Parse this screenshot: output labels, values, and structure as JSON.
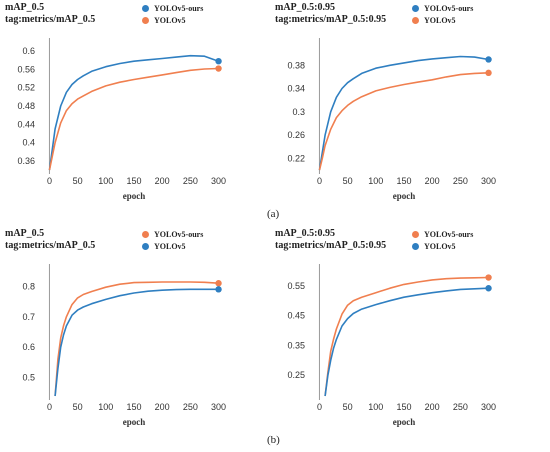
{
  "colors": {
    "blue": "#2f7fc1",
    "orange": "#f07f4f"
  },
  "captions": {
    "a": "(a)",
    "b": "(b)"
  },
  "chart_data": [
    {
      "type": "line",
      "title": "mAP_0.5",
      "subtitle": "tag:metrics/mAP_0.5",
      "xlabel": "epoch",
      "xlim": [
        -15,
        315
      ],
      "ylim": [
        0.34,
        0.62
      ],
      "xticks": [
        0,
        50,
        100,
        150,
        200,
        250,
        300
      ],
      "yticks": [
        0.36,
        0.4,
        0.44,
        0.48,
        0.52,
        0.56,
        0.6
      ],
      "ytick_labels": [
        "0.36",
        "0.4",
        "0.44",
        "0.48",
        "0.52",
        "0.56",
        "0.6"
      ],
      "grid": false,
      "legend": "top-right",
      "series": [
        {
          "name": "YOLOv5-ours",
          "color": "blue",
          "x": [
            0,
            5,
            10,
            20,
            30,
            40,
            50,
            60,
            75,
            100,
            125,
            150,
            175,
            200,
            225,
            250,
            275,
            300
          ],
          "y": [
            0.34,
            0.385,
            0.43,
            0.48,
            0.51,
            0.527,
            0.538,
            0.546,
            0.556,
            0.566,
            0.573,
            0.578,
            0.581,
            0.584,
            0.587,
            0.59,
            0.589,
            0.578
          ]
        },
        {
          "name": "YOLOv5",
          "color": "orange",
          "x": [
            0,
            5,
            10,
            20,
            30,
            40,
            50,
            60,
            75,
            100,
            125,
            150,
            175,
            200,
            225,
            250,
            275,
            300
          ],
          "y": [
            0.34,
            0.37,
            0.4,
            0.443,
            0.47,
            0.485,
            0.495,
            0.502,
            0.512,
            0.524,
            0.532,
            0.538,
            0.543,
            0.548,
            0.553,
            0.558,
            0.561,
            0.562
          ]
        }
      ]
    },
    {
      "type": "line",
      "title": "mAP_0.5:0.95",
      "subtitle": "tag:metrics/mAP_0.5:0.95",
      "xlabel": "epoch",
      "xlim": [
        -15,
        315
      ],
      "ylim": [
        0.2,
        0.42
      ],
      "xticks": [
        0,
        50,
        100,
        150,
        200,
        250,
        300
      ],
      "yticks": [
        0.22,
        0.26,
        0.3,
        0.34,
        0.38
      ],
      "ytick_labels": [
        "0.22",
        "0.26",
        "0.3",
        "0.34",
        "0.38"
      ],
      "grid": false,
      "legend": "top-right",
      "series": [
        {
          "name": "YOLOv5-ours",
          "color": "blue",
          "x": [
            0,
            5,
            10,
            20,
            30,
            40,
            50,
            60,
            75,
            100,
            125,
            150,
            175,
            200,
            225,
            250,
            275,
            300
          ],
          "y": [
            0.2,
            0.23,
            0.26,
            0.3,
            0.325,
            0.34,
            0.35,
            0.357,
            0.366,
            0.375,
            0.38,
            0.384,
            0.388,
            0.391,
            0.393,
            0.395,
            0.394,
            0.39
          ]
        },
        {
          "name": "YOLOv5",
          "color": "orange",
          "x": [
            0,
            5,
            10,
            20,
            30,
            40,
            50,
            60,
            75,
            100,
            125,
            150,
            175,
            200,
            225,
            250,
            275,
            300
          ],
          "y": [
            0.2,
            0.22,
            0.242,
            0.27,
            0.29,
            0.302,
            0.311,
            0.318,
            0.326,
            0.336,
            0.342,
            0.347,
            0.351,
            0.355,
            0.36,
            0.364,
            0.366,
            0.367
          ]
        }
      ]
    },
    {
      "type": "line",
      "title": "mAP_0.5",
      "subtitle": "tag:metrics/mAP_0.5",
      "xlabel": "epoch",
      "xlim": [
        -15,
        315
      ],
      "ylim": [
        0.44,
        0.86
      ],
      "xticks": [
        0,
        50,
        100,
        150,
        200,
        250,
        300
      ],
      "yticks": [
        0.5,
        0.6,
        0.7,
        0.8
      ],
      "ytick_labels": [
        "0.5",
        "0.6",
        "0.7",
        "0.8"
      ],
      "grid": false,
      "legend": "top-right",
      "series": [
        {
          "name": "YOLOv5-ours",
          "color": "orange",
          "x": [
            10,
            15,
            20,
            25,
            30,
            40,
            50,
            60,
            75,
            100,
            125,
            150,
            175,
            200,
            225,
            250,
            275,
            300
          ],
          "y": [
            0.44,
            0.56,
            0.63,
            0.67,
            0.7,
            0.74,
            0.762,
            0.773,
            0.783,
            0.797,
            0.807,
            0.812,
            0.813,
            0.814,
            0.814,
            0.814,
            0.813,
            0.81
          ]
        },
        {
          "name": "YOLOv5",
          "color": "blue",
          "x": [
            10,
            15,
            20,
            25,
            30,
            40,
            50,
            60,
            75,
            100,
            125,
            150,
            175,
            200,
            225,
            250,
            275,
            300
          ],
          "y": [
            0.44,
            0.53,
            0.6,
            0.64,
            0.67,
            0.705,
            0.722,
            0.732,
            0.743,
            0.757,
            0.769,
            0.778,
            0.784,
            0.787,
            0.789,
            0.79,
            0.79,
            0.79
          ]
        }
      ]
    },
    {
      "type": "line",
      "title": "mAP_0.5:0.95",
      "subtitle": "tag:metrics/mAP_0.5:0.95",
      "xlabel": "epoch",
      "xlim": [
        -15,
        315
      ],
      "ylim": [
        0.18,
        0.61
      ],
      "xticks": [
        0,
        50,
        100,
        150,
        200,
        250,
        300
      ],
      "yticks": [
        0.25,
        0.35,
        0.45,
        0.55
      ],
      "ytick_labels": [
        "0.25",
        "0.35",
        "0.45",
        "0.55"
      ],
      "grid": false,
      "legend": "top-right",
      "series": [
        {
          "name": "YOLOv5-ours",
          "color": "orange",
          "x": [
            10,
            15,
            20,
            25,
            30,
            40,
            50,
            60,
            75,
            100,
            125,
            150,
            175,
            200,
            225,
            250,
            275,
            300
          ],
          "y": [
            0.18,
            0.26,
            0.33,
            0.37,
            0.405,
            0.455,
            0.485,
            0.5,
            0.512,
            0.527,
            0.542,
            0.555,
            0.563,
            0.57,
            0.574,
            0.576,
            0.577,
            0.578
          ]
        },
        {
          "name": "YOLOv5",
          "color": "blue",
          "x": [
            10,
            15,
            20,
            25,
            30,
            40,
            50,
            60,
            75,
            100,
            125,
            150,
            175,
            200,
            225,
            250,
            275,
            300
          ],
          "y": [
            0.18,
            0.25,
            0.3,
            0.34,
            0.37,
            0.415,
            0.44,
            0.457,
            0.472,
            0.487,
            0.5,
            0.512,
            0.52,
            0.527,
            0.533,
            0.538,
            0.54,
            0.542
          ]
        }
      ]
    }
  ]
}
